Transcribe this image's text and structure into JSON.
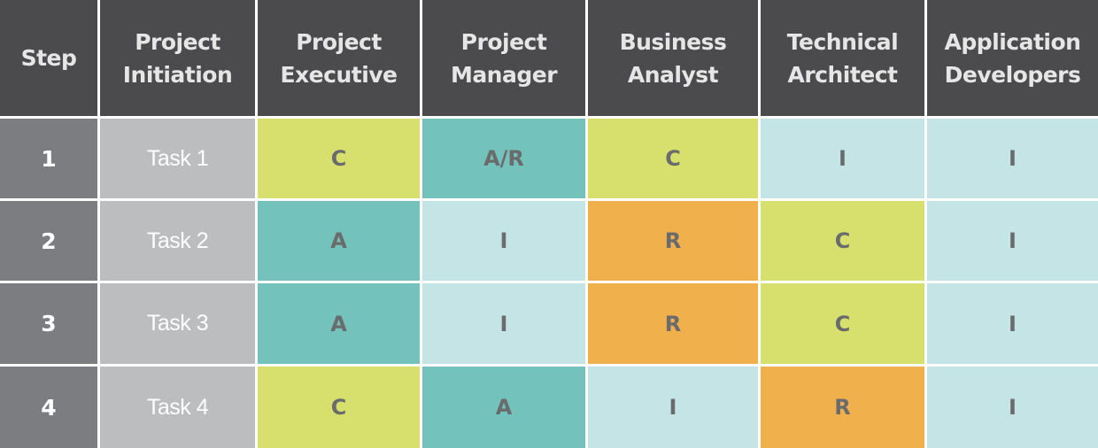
{
  "headers": [
    "Step",
    "Project\nInitiation",
    "Project\nExecutive",
    "Project\nManager",
    "Business\nAnalyst",
    "Technical\nArchitect",
    "Application\nDevelopers"
  ],
  "rows": [
    {
      "step": "1",
      "task": "Task 1",
      "roles": [
        "C",
        "A/R",
        "C",
        "I",
        "I"
      ]
    },
    {
      "step": "2",
      "task": "Task 2",
      "roles": [
        "A",
        "I",
        "R",
        "C",
        "I"
      ]
    },
    {
      "step": "3",
      "task": "Task 3",
      "roles": [
        "A",
        "I",
        "R",
        "C",
        "I"
      ]
    },
    {
      "step": "4",
      "task": "Task 4",
      "roles": [
        "C",
        "A",
        "I",
        "R",
        "I"
      ]
    }
  ],
  "colors": {
    "C": "#d7e06c",
    "A": "#74c2bc",
    "A/R": "#74c2bc",
    "R": "#f0b04b",
    "I": "#c4e4e5",
    "header": "#4b4b4d",
    "step": "#7c7d81",
    "task": "#bcbdbf"
  }
}
